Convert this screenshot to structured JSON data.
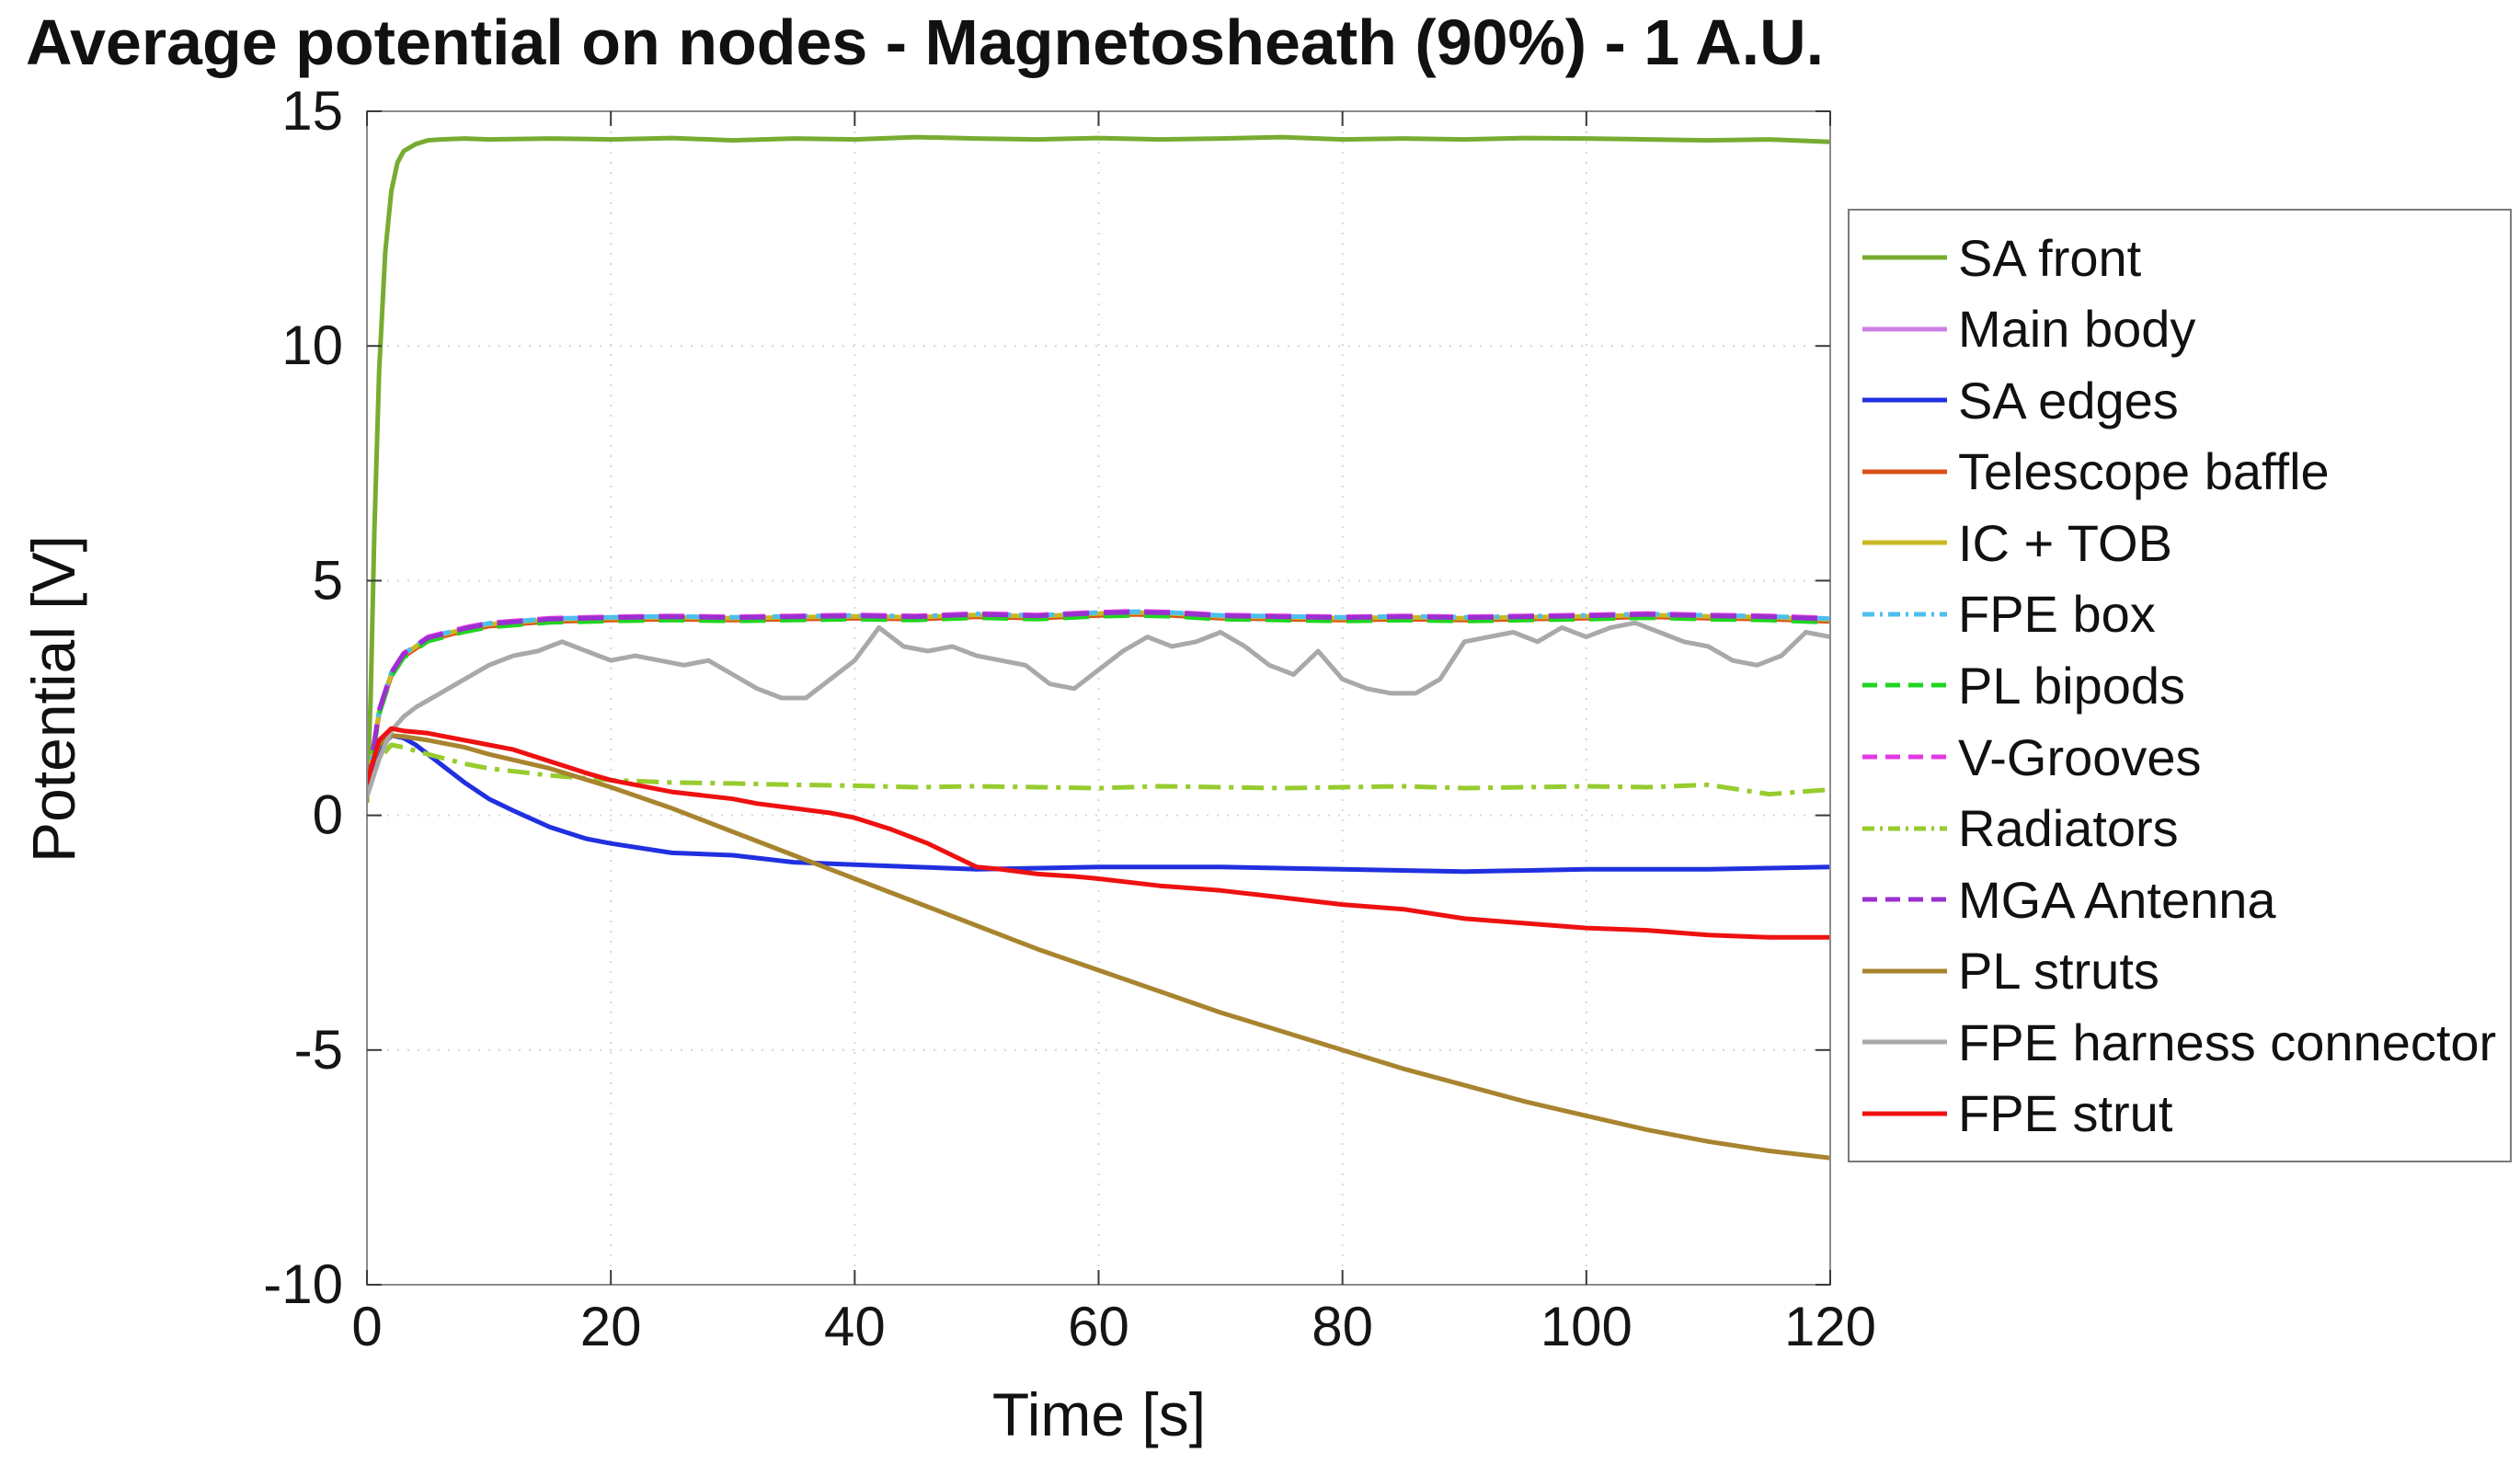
{
  "chart_data": {
    "type": "line",
    "title": "Average potential on nodes - Magnetosheath (90%) - 1 A.U.",
    "xlabel": "Time [s]",
    "ylabel": "Potential [V]",
    "xlim": [
      0,
      120
    ],
    "ylim": [
      -10,
      15
    ],
    "xticks": [
      0,
      20,
      40,
      60,
      80,
      100,
      120
    ],
    "yticks": [
      -10,
      -5,
      0,
      5,
      10,
      15
    ],
    "grid": true,
    "legend_position": "right",
    "series": [
      {
        "name": "SA front",
        "color": "#77ac30",
        "dash": "solid",
        "width": 5,
        "x": [
          0,
          0.3,
          0.6,
          1,
          1.5,
          2,
          2.5,
          3,
          4,
          5,
          6,
          8,
          10,
          15,
          20,
          25,
          30,
          35,
          40,
          45,
          50,
          55,
          60,
          65,
          70,
          75,
          80,
          85,
          90,
          95,
          100,
          105,
          110,
          115,
          120
        ],
        "y": [
          0.3,
          2.5,
          6,
          9.5,
          12,
          13.3,
          13.9,
          14.15,
          14.3,
          14.38,
          14.4,
          14.42,
          14.4,
          14.42,
          14.4,
          14.43,
          14.38,
          14.42,
          14.4,
          14.45,
          14.42,
          14.4,
          14.43,
          14.4,
          14.42,
          14.45,
          14.4,
          14.42,
          14.4,
          14.43,
          14.42,
          14.4,
          14.38,
          14.4,
          14.35
        ]
      },
      {
        "name": "Main body",
        "color": "#cc80e6",
        "dash": "solid",
        "width": 5,
        "x": [
          0,
          1,
          2,
          3,
          5,
          8,
          10,
          15,
          20,
          25,
          30,
          35,
          40,
          45,
          50,
          55,
          60,
          63,
          66,
          70,
          75,
          80,
          85,
          90,
          95,
          100,
          105,
          110,
          115,
          120
        ],
        "y": [
          0.5,
          2.2,
          3.0,
          3.4,
          3.75,
          3.95,
          4.05,
          4.15,
          4.18,
          4.2,
          4.18,
          4.2,
          4.22,
          4.2,
          4.25,
          4.22,
          4.28,
          4.3,
          4.28,
          4.22,
          4.2,
          4.18,
          4.2,
          4.18,
          4.2,
          4.22,
          4.25,
          4.22,
          4.2,
          4.15
        ]
      },
      {
        "name": "SA edges",
        "color": "#2030e0",
        "dash": "solid",
        "width": 5,
        "x": [
          0,
          1,
          2,
          3,
          4,
          5,
          6,
          8,
          10,
          12,
          15,
          18,
          20,
          25,
          30,
          35,
          40,
          45,
          50,
          60,
          70,
          80,
          90,
          100,
          110,
          120
        ],
        "y": [
          0.7,
          1.4,
          1.7,
          1.65,
          1.5,
          1.3,
          1.1,
          0.7,
          0.35,
          0.1,
          -0.25,
          -0.5,
          -0.6,
          -0.8,
          -0.85,
          -1.0,
          -1.05,
          -1.1,
          -1.15,
          -1.1,
          -1.1,
          -1.15,
          -1.2,
          -1.15,
          -1.15,
          -1.1
        ]
      },
      {
        "name": "Telescope baffle",
        "color": "#d95319",
        "dash": "solid",
        "width": 5,
        "x": [
          0,
          1,
          2,
          3,
          5,
          8,
          10,
          15,
          20,
          25,
          30,
          35,
          40,
          45,
          50,
          55,
          60,
          63,
          66,
          70,
          75,
          80,
          85,
          90,
          95,
          100,
          105,
          110,
          115,
          120
        ],
        "y": [
          0.48,
          2.18,
          2.98,
          3.38,
          3.73,
          3.93,
          4.03,
          4.13,
          4.16,
          4.18,
          4.16,
          4.18,
          4.2,
          4.18,
          4.23,
          4.2,
          4.26,
          4.28,
          4.26,
          4.2,
          4.18,
          4.16,
          4.18,
          4.16,
          4.18,
          4.2,
          4.23,
          4.2,
          4.18,
          4.13
        ]
      },
      {
        "name": "IC + TOB",
        "color": "#c9b821",
        "dash": "solid",
        "width": 5,
        "x": [
          0,
          1,
          2,
          3,
          5,
          8,
          10,
          15,
          20,
          25,
          30,
          35,
          40,
          45,
          50,
          55,
          60,
          63,
          66,
          70,
          75,
          80,
          85,
          90,
          95,
          100,
          105,
          110,
          115,
          120
        ],
        "y": [
          0.52,
          2.22,
          3.02,
          3.42,
          3.77,
          3.97,
          4.07,
          4.17,
          4.2,
          4.22,
          4.2,
          4.22,
          4.24,
          4.22,
          4.27,
          4.24,
          4.3,
          4.32,
          4.3,
          4.24,
          4.22,
          4.2,
          4.22,
          4.2,
          4.22,
          4.24,
          4.27,
          4.24,
          4.22,
          4.17
        ]
      },
      {
        "name": "FPE box",
        "color": "#4dbeee",
        "dash": "dashdot",
        "width": 5,
        "x": [
          0,
          1,
          2,
          3,
          5,
          8,
          10,
          15,
          20,
          25,
          30,
          35,
          40,
          45,
          50,
          55,
          60,
          63,
          66,
          70,
          75,
          80,
          85,
          90,
          95,
          100,
          105,
          110,
          115,
          120
        ],
        "y": [
          0.54,
          2.24,
          3.04,
          3.44,
          3.79,
          3.99,
          4.09,
          4.19,
          4.22,
          4.24,
          4.22,
          4.24,
          4.26,
          4.24,
          4.29,
          4.26,
          4.32,
          4.34,
          4.32,
          4.26,
          4.24,
          4.22,
          4.24,
          4.22,
          4.24,
          4.26,
          4.29,
          4.26,
          4.24,
          4.19
        ]
      },
      {
        "name": "PL bipods",
        "color": "#21d421",
        "dash": "dashed",
        "width": 5,
        "x": [
          0,
          1,
          2,
          3,
          5,
          8,
          10,
          15,
          20,
          25,
          30,
          35,
          40,
          45,
          50,
          55,
          60,
          63,
          66,
          70,
          75,
          80,
          85,
          90,
          95,
          100,
          105,
          110,
          115,
          120
        ],
        "y": [
          0.46,
          2.16,
          2.96,
          3.36,
          3.71,
          3.91,
          4.01,
          4.11,
          4.14,
          4.16,
          4.14,
          4.16,
          4.18,
          4.16,
          4.21,
          4.18,
          4.24,
          4.26,
          4.24,
          4.18,
          4.16,
          4.14,
          4.16,
          4.14,
          4.16,
          4.18,
          4.21,
          4.18,
          4.16,
          4.11
        ]
      },
      {
        "name": "V-Grooves",
        "color": "#e438e4",
        "dash": "dashed",
        "width": 5,
        "x": [
          0,
          1,
          2,
          3,
          5,
          8,
          10,
          15,
          20,
          25,
          30,
          35,
          40,
          45,
          50,
          55,
          60,
          63,
          66,
          70,
          75,
          80,
          85,
          90,
          95,
          100,
          105,
          110,
          115,
          120
        ],
        "y": [
          0.55,
          2.25,
          3.05,
          3.45,
          3.8,
          4.0,
          4.1,
          4.2,
          4.23,
          4.25,
          4.23,
          4.25,
          4.27,
          4.25,
          4.3,
          4.27,
          4.33,
          4.35,
          4.33,
          4.27,
          4.25,
          4.23,
          4.25,
          4.23,
          4.25,
          4.27,
          4.3,
          4.27,
          4.25,
          4.2
        ]
      },
      {
        "name": "Radiators",
        "color": "#97cc2e",
        "dash": "dashdot",
        "width": 5,
        "x": [
          0,
          1,
          2,
          3,
          5,
          8,
          10,
          15,
          20,
          25,
          30,
          35,
          40,
          45,
          50,
          55,
          60,
          65,
          70,
          75,
          80,
          85,
          90,
          95,
          100,
          105,
          110,
          115,
          120
        ],
        "y": [
          0.5,
          1.2,
          1.5,
          1.45,
          1.3,
          1.1,
          1.0,
          0.85,
          0.75,
          0.7,
          0.68,
          0.65,
          0.63,
          0.6,
          0.62,
          0.6,
          0.58,
          0.62,
          0.6,
          0.58,
          0.6,
          0.62,
          0.58,
          0.6,
          0.62,
          0.6,
          0.65,
          0.45,
          0.55
        ]
      },
      {
        "name": "MGA Antenna",
        "color": "#9a30d0",
        "dash": "dashed",
        "width": 5,
        "x": [
          0,
          1,
          2,
          3,
          5,
          8,
          10,
          15,
          20,
          25,
          30,
          35,
          40,
          45,
          50,
          55,
          60,
          63,
          66,
          70,
          75,
          80,
          85,
          90,
          95,
          100,
          105,
          110,
          115,
          120
        ],
        "y": [
          0.53,
          2.23,
          3.03,
          3.43,
          3.78,
          3.98,
          4.08,
          4.18,
          4.21,
          4.23,
          4.21,
          4.23,
          4.25,
          4.23,
          4.28,
          4.25,
          4.31,
          4.33,
          4.31,
          4.25,
          4.23,
          4.21,
          4.23,
          4.21,
          4.23,
          4.25,
          4.28,
          4.25,
          4.23,
          4.18
        ]
      },
      {
        "name": "PL struts",
        "color": "#a8842f",
        "dash": "solid",
        "width": 5,
        "x": [
          0,
          1,
          2,
          3,
          5,
          8,
          10,
          15,
          20,
          25,
          30,
          35,
          40,
          45,
          50,
          55,
          60,
          65,
          70,
          75,
          80,
          85,
          90,
          95,
          100,
          105,
          110,
          115,
          120
        ],
        "y": [
          0.8,
          1.5,
          1.7,
          1.68,
          1.6,
          1.45,
          1.3,
          1.0,
          0.6,
          0.15,
          -0.35,
          -0.85,
          -1.35,
          -1.85,
          -2.35,
          -2.85,
          -3.3,
          -3.75,
          -4.2,
          -4.6,
          -5.0,
          -5.4,
          -5.75,
          -6.1,
          -6.4,
          -6.7,
          -6.95,
          -7.15,
          -7.3
        ]
      },
      {
        "name": "FPE harness connector",
        "color": "#a9a9a9",
        "dash": "solid",
        "width": 5,
        "x": [
          0,
          1,
          2,
          3,
          4,
          6,
          8,
          10,
          12,
          14,
          16,
          18,
          20,
          22,
          24,
          26,
          28,
          30,
          32,
          34,
          36,
          38,
          40,
          42,
          44,
          46,
          48,
          50,
          52,
          54,
          56,
          58,
          60,
          62,
          64,
          66,
          68,
          70,
          72,
          74,
          76,
          78,
          80,
          82,
          84,
          86,
          88,
          90,
          92,
          94,
          96,
          98,
          100,
          102,
          104,
          106,
          108,
          110,
          112,
          114,
          116,
          118,
          120
        ],
        "y": [
          0.4,
          1.2,
          1.8,
          2.1,
          2.3,
          2.6,
          2.9,
          3.2,
          3.4,
          3.5,
          3.7,
          3.5,
          3.3,
          3.4,
          3.3,
          3.2,
          3.3,
          3.0,
          2.7,
          2.5,
          2.5,
          2.9,
          3.3,
          4.0,
          3.6,
          3.5,
          3.6,
          3.4,
          3.3,
          3.2,
          2.8,
          2.7,
          3.1,
          3.5,
          3.8,
          3.6,
          3.7,
          3.9,
          3.6,
          3.2,
          3.0,
          3.5,
          2.9,
          2.7,
          2.6,
          2.6,
          2.9,
          3.7,
          3.8,
          3.9,
          3.7,
          4.0,
          3.8,
          4.0,
          4.1,
          3.9,
          3.7,
          3.6,
          3.3,
          3.2,
          3.4,
          3.9,
          3.8
        ]
      },
      {
        "name": "FPE strut",
        "color": "#ee1111",
        "dash": "solid",
        "width": 5,
        "x": [
          0,
          1,
          2,
          3,
          5,
          8,
          10,
          12,
          15,
          18,
          20,
          25,
          30,
          32,
          35,
          38,
          40,
          43,
          46,
          48,
          50,
          52,
          55,
          58,
          60,
          65,
          70,
          75,
          80,
          85,
          90,
          95,
          100,
          105,
          110,
          115,
          120
        ],
        "y": [
          0.7,
          1.6,
          1.85,
          1.8,
          1.75,
          1.6,
          1.5,
          1.4,
          1.15,
          0.9,
          0.75,
          0.5,
          0.35,
          0.25,
          0.15,
          0.05,
          -0.05,
          -0.3,
          -0.6,
          -0.85,
          -1.1,
          -1.15,
          -1.25,
          -1.3,
          -1.35,
          -1.5,
          -1.6,
          -1.75,
          -1.9,
          -2.0,
          -2.2,
          -2.3,
          -2.4,
          -2.45,
          -2.55,
          -2.6,
          -2.6
        ]
      }
    ]
  }
}
